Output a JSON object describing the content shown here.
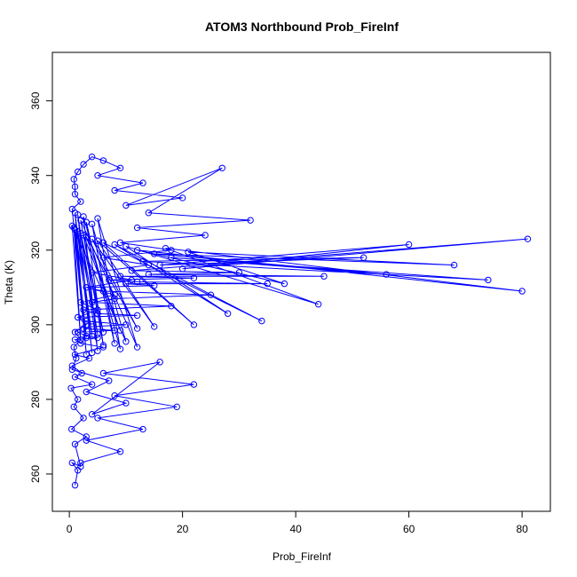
{
  "chart_data": {
    "type": "line",
    "title": "ATOM3 Northbound Prob_FireInf",
    "xlabel": "Prob_FireInf",
    "ylabel": "Theta (K)",
    "xlim": [
      -3,
      85
    ],
    "ylim": [
      250,
      373
    ],
    "xticks": [
      0,
      20,
      40,
      60,
      80
    ],
    "yticks": [
      260,
      280,
      300,
      320,
      340,
      360
    ],
    "series_color": "#0000ff",
    "marker": "open-circle",
    "grid": false,
    "series": [
      {
        "x": [
          1,
          1.5,
          0.5,
          2,
          1,
          3,
          0.4,
          2.5,
          0.8,
          1.5,
          0.3,
          4,
          1,
          2.2,
          0.5,
          3.5,
          1,
          6,
          2,
          1,
          5,
          3,
          1.5,
          8,
          2.5,
          4,
          10,
          3,
          1.5,
          12,
          5,
          2.5,
          18,
          4,
          8,
          25,
          6,
          3,
          15,
          10,
          35,
          12,
          7,
          22,
          9,
          45,
          14,
          30,
          11,
          81,
          20,
          60,
          16,
          52,
          13,
          74,
          18,
          56,
          15,
          68,
          21,
          38,
          12,
          80,
          17,
          44,
          10,
          28,
          8,
          34,
          6,
          22,
          5,
          15,
          4,
          12,
          3,
          9,
          2.5,
          6,
          2,
          5,
          1.5,
          4,
          1,
          3,
          0.8,
          2,
          0.5,
          10,
          4,
          8,
          3,
          6,
          2,
          12,
          5,
          9,
          2.5,
          5,
          1.5,
          4,
          1,
          3,
          0.5,
          2,
          1,
          1,
          0.8,
          1.5,
          2.5,
          4,
          6,
          9,
          5,
          13,
          8,
          20,
          10,
          27,
          14,
          32,
          12,
          24,
          9,
          18,
          6,
          14,
          4,
          11,
          3,
          8,
          2,
          5,
          1.5,
          3,
          1,
          2,
          0.8,
          1.2,
          0.5,
          7,
          3,
          10,
          4,
          16,
          6,
          22,
          8,
          19,
          5,
          13,
          3,
          9,
          2
        ],
        "y": [
          257,
          261,
          263,
          262,
          268,
          270,
          272,
          275,
          278,
          280,
          283,
          284,
          286,
          287,
          289,
          291,
          292,
          294,
          295,
          296,
          296.5,
          297,
          298,
          298.5,
          299,
          299.5,
          300,
          301,
          302,
          302.5,
          303,
          304,
          305,
          306,
          307,
          308,
          309,
          310,
          310.5,
          311,
          311,
          311.5,
          312,
          312.5,
          313,
          313,
          313.5,
          314,
          314.5,
          323,
          315,
          321.5,
          316,
          318,
          317,
          312,
          318,
          313.5,
          319,
          316,
          319.5,
          311,
          320,
          309,
          320.5,
          305.5,
          321,
          303,
          321.5,
          301,
          322,
          300,
          322.5,
          299.5,
          323,
          299,
          323.5,
          298.5,
          324,
          298,
          324.5,
          297.5,
          325,
          297,
          325.5,
          296.5,
          326,
          296,
          326.5,
          295.5,
          327,
          295,
          327.5,
          294.5,
          328,
          294,
          328.5,
          293.5,
          329,
          293,
          329.5,
          292.5,
          330,
          292,
          331,
          333,
          335,
          337,
          339,
          341,
          343,
          345,
          344,
          342,
          340,
          338,
          336,
          334,
          332,
          342,
          330,
          328,
          326,
          324,
          322,
          320,
          318,
          316,
          314,
          312,
          310,
          308,
          306,
          304,
          302,
          300,
          298,
          296,
          294,
          291,
          288,
          285,
          282,
          279,
          276,
          290,
          287,
          284,
          281,
          278,
          275,
          272,
          269,
          266,
          263
        ],
        "label": ""
      }
    ]
  }
}
